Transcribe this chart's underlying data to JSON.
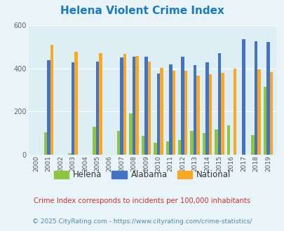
{
  "title": "Helena Violent Crime Index",
  "title_color": "#1a7abf",
  "years": [
    "2000",
    "2001",
    "2002",
    "2003",
    "2004",
    "2005",
    "2006",
    "2007",
    "2008",
    "2009",
    "2010",
    "2011",
    "2012",
    "2013",
    "2014",
    "2015",
    "2016",
    "2017",
    "2018",
    "2019"
  ],
  "helena": [
    0,
    105,
    0,
    8,
    0,
    130,
    0,
    110,
    192,
    88,
    55,
    62,
    68,
    110,
    100,
    118,
    138,
    0,
    92,
    315
  ],
  "alabama": [
    0,
    440,
    0,
    430,
    0,
    433,
    0,
    453,
    455,
    455,
    378,
    420,
    455,
    415,
    430,
    470,
    0,
    535,
    525,
    522
  ],
  "national": [
    0,
    510,
    0,
    477,
    0,
    472,
    0,
    468,
    458,
    432,
    404,
    389,
    390,
    367,
    375,
    381,
    400,
    0,
    395,
    382
  ],
  "helena_missing": [
    1,
    0,
    1,
    0,
    1,
    0,
    1,
    0,
    0,
    0,
    0,
    0,
    0,
    0,
    0,
    0,
    0,
    1,
    0,
    0
  ],
  "alabama_missing": [
    1,
    0,
    1,
    0,
    1,
    0,
    1,
    0,
    0,
    0,
    0,
    0,
    0,
    0,
    0,
    0,
    1,
    0,
    0,
    0
  ],
  "national_missing": [
    1,
    0,
    1,
    0,
    1,
    0,
    1,
    0,
    0,
    0,
    0,
    0,
    0,
    0,
    0,
    0,
    0,
    1,
    0,
    0
  ],
  "helena_color": "#8dc63f",
  "alabama_color": "#4472c4",
  "national_color": "#f9a825",
  "bg_color": "#e8f4f8",
  "plot_bg": "#ddeef4",
  "ylim": [
    0,
    600
  ],
  "yticks": [
    0,
    200,
    400,
    600
  ],
  "footnote1": "Crime Index corresponds to incidents per 100,000 inhabitants",
  "footnote2": "© 2025 CityRating.com - https://www.cityrating.com/crime-statistics/",
  "footnote1_color": "#cc3333",
  "footnote2_color": "#5588aa"
}
